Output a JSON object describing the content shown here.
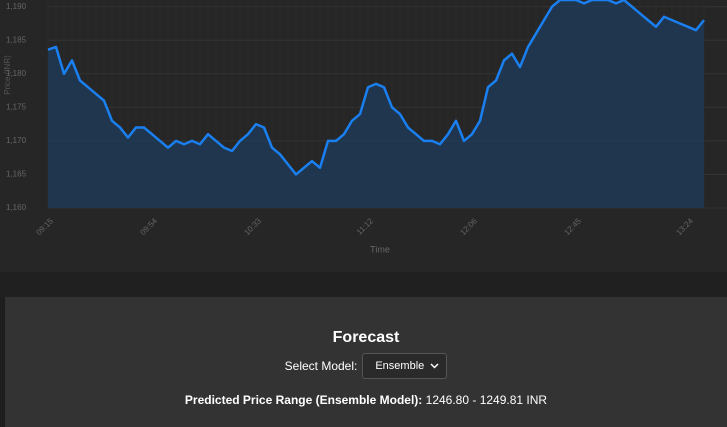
{
  "chart_data": {
    "type": "line",
    "x_label": "Time",
    "y_label": "Price (INR)",
    "categories": [
      "09:15",
      null,
      null,
      null,
      null,
      null,
      null,
      null,
      null,
      null,
      null,
      null,
      null,
      "09:54",
      null,
      null,
      null,
      null,
      null,
      null,
      null,
      null,
      null,
      null,
      null,
      null,
      "10:33",
      null,
      null,
      null,
      null,
      null,
      null,
      null,
      null,
      null,
      null,
      null,
      null,
      null,
      "11:12",
      null,
      null,
      null,
      null,
      null,
      null,
      null,
      null,
      null,
      null,
      null,
      null,
      "12:06",
      null,
      null,
      null,
      null,
      null,
      null,
      null,
      null,
      null,
      null,
      null,
      null,
      "12:45",
      null,
      null,
      null,
      null,
      null,
      null,
      null,
      null,
      null,
      null,
      null,
      null,
      null,
      "13:24",
      null,
      null
    ],
    "series": [
      {
        "color": "#1a7ff0",
        "values": [
          1183.6,
          1184,
          1180,
          1182,
          1179,
          1178,
          1177,
          1176,
          1173,
          1172,
          1170.5,
          1172,
          1172,
          1171,
          1170,
          1169,
          1170,
          1169.5,
          1170,
          1169.5,
          1171,
          1170,
          1169,
          1168.5,
          1170,
          1171,
          1172.5,
          1172,
          1169,
          1168,
          1166.5,
          1165,
          1166,
          1167,
          1166,
          1170,
          1170,
          1171,
          1173,
          1174,
          1178,
          1178.5,
          1178,
          1175,
          1174,
          1172,
          1171,
          1170,
          1170,
          1169.5,
          1171,
          1173,
          1170,
          1171,
          1173,
          1178,
          1179,
          1182,
          1183,
          1181,
          1184,
          1186,
          1188,
          1190,
          1191,
          1191,
          1191,
          1190.5,
          1191,
          1191,
          1191,
          1190.5,
          1191,
          1190,
          1189,
          1188,
          1187,
          1188.5,
          1188,
          1187.5,
          1187,
          1186.5,
          1188
        ]
      }
    ],
    "area": true,
    "area_color": "#1f3a56",
    "ylim": [
      1160,
      1191
    ],
    "yticks": [
      {
        "value": 1160,
        "label": "1,160"
      },
      {
        "value": 1165,
        "label": "1,165"
      },
      {
        "value": 1170,
        "label": "1,170"
      },
      {
        "value": 1175,
        "label": "1,175"
      },
      {
        "value": 1180,
        "label": "1,180"
      },
      {
        "value": 1185,
        "label": "1,185"
      },
      {
        "value": 1190,
        "label": "1,190"
      }
    ],
    "grid": true
  },
  "forecast": {
    "title": "Forecast",
    "select_label": "Select Model:",
    "model": "Ensemble",
    "result_label": "Predicted Price Range (Ensemble Model):",
    "result_value": "1246.80 - 1249.81 INR"
  }
}
